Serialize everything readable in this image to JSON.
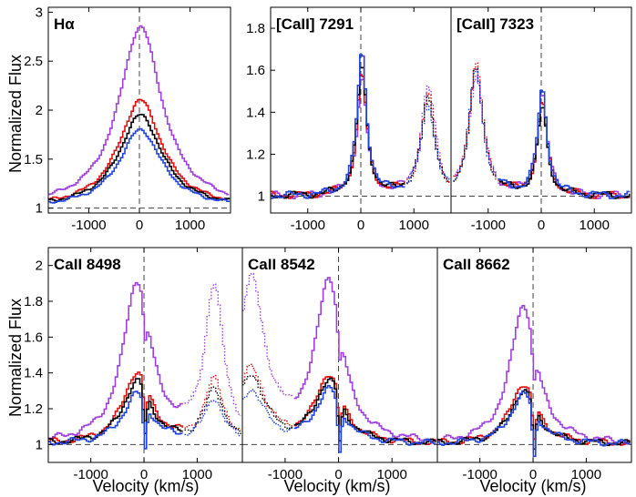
{
  "chart_data": {
    "type": "line",
    "colors": {
      "violet": "#a040e0",
      "red": "#e01010",
      "black": "#000000",
      "blue": "#2244dd"
    },
    "series_names": [
      "violet",
      "red",
      "black",
      "blue"
    ],
    "shared_labels": {
      "ylabel": "Normalized Flux",
      "xlabel": "Velocity  (km/s)"
    },
    "panels": [
      {
        "title": "Hα",
        "xlim": [
          -1800,
          1800
        ],
        "ylim": [
          0.95,
          3.05
        ],
        "xticks": [
          -1000,
          0,
          1000
        ],
        "yticks": [
          1,
          1.5,
          2,
          2.5,
          3
        ],
        "ytick_labels": [
          "1",
          "1.5",
          "2",
          "2.5",
          "3"
        ],
        "features": [
          {
            "center": 0,
            "width": 520,
            "amps": [
              1.85,
              1.1,
              0.95,
              0.8
            ]
          }
        ]
      },
      {
        "title": "[CaII] 7291",
        "xlim": [
          -1700,
          1700
        ],
        "ylim": [
          0.92,
          1.9
        ],
        "xticks": [
          -1000,
          0,
          1000
        ],
        "yticks": [
          1,
          1.2,
          1.4,
          1.6,
          1.8
        ],
        "ytick_labels": [
          "1",
          "1.2",
          "1.4",
          "1.6",
          "1.8"
        ],
        "features": [
          {
            "center": 0,
            "width": 110,
            "amps": [
              0.56,
              0.58,
              0.62,
              0.68
            ]
          },
          {
            "center": 1250,
            "width": 160,
            "amps": [
              0.52,
              0.48,
              0.46,
              0.44
            ],
            "dotted": true
          }
        ]
      },
      {
        "title": "[CaII] 7323",
        "xlim": [
          -1700,
          1700
        ],
        "ylim": [
          0.92,
          1.9
        ],
        "xticks": [
          -1000,
          0,
          1000
        ],
        "yticks": [],
        "ytick_labels": [],
        "features": [
          {
            "center": 0,
            "width": 110,
            "amps": [
              0.48,
              0.44,
              0.42,
              0.5
            ]
          },
          {
            "center": -1250,
            "width": 160,
            "amps": [
              0.58,
              0.62,
              0.6,
              0.6
            ],
            "dotted": true
          }
        ]
      },
      {
        "title": "CaII 8498",
        "xlim": [
          -1800,
          1850
        ],
        "ylim": [
          0.9,
          2.1
        ],
        "xticks": [
          -1000,
          0,
          1000
        ],
        "yticks": [
          1,
          1.2,
          1.4,
          1.6,
          1.8,
          2
        ],
        "ytick_labels": [
          "1",
          "1.2",
          "1.4",
          "1.6",
          "1.8",
          "2"
        ],
        "features": [
          {
            "center": -150,
            "width": 320,
            "amps": [
              0.9,
              0.4,
              0.35,
              0.28
            ]
          },
          {
            "center": 1300,
            "width": 220,
            "amps": [
              0.85,
              0.35,
              0.3,
              0.25
            ],
            "dotted": true
          }
        ]
      },
      {
        "title": "CaII 8542",
        "xlim": [
          -1800,
          1850
        ],
        "ylim": [
          0.9,
          2.1
        ],
        "xticks": [
          -1000,
          0,
          1000
        ],
        "yticks": [],
        "ytick_labels": [],
        "features": [
          {
            "center": -200,
            "width": 300,
            "amps": [
              0.9,
              0.38,
              0.35,
              0.3
            ]
          },
          {
            "center": -1650,
            "width": 300,
            "amps": [
              0.9,
              0.42,
              0.38,
              0.3
            ],
            "dotted": true
          }
        ]
      },
      {
        "title": "CaII 8662",
        "xlim": [
          -1800,
          1850
        ],
        "ylim": [
          0.9,
          2.1
        ],
        "xticks": [
          -1000,
          0,
          1000
        ],
        "yticks": [],
        "ytick_labels": [],
        "features": [
          {
            "center": -200,
            "width": 300,
            "amps": [
              0.78,
              0.34,
              0.3,
              0.28
            ]
          }
        ]
      }
    ]
  }
}
